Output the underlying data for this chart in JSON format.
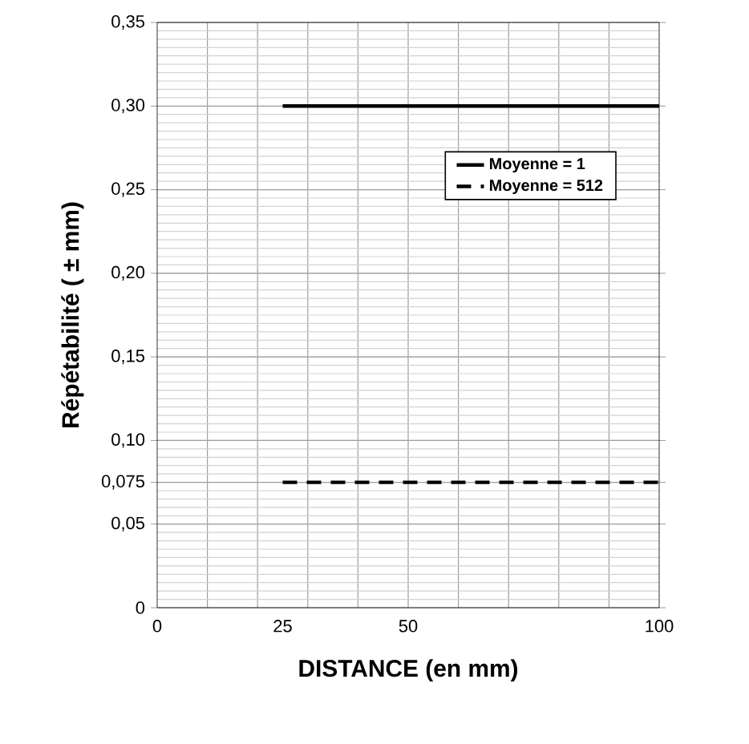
{
  "chart_data": {
    "type": "line",
    "xlabel": "DISTANCE (en mm)",
    "ylabel": "Répétabilité ( ± mm)",
    "xlim": [
      0,
      100
    ],
    "ylim": [
      0,
      0.35
    ],
    "xticks": [
      0,
      25,
      50,
      100
    ],
    "yticks": [
      0,
      {
        "value": 0.05,
        "label": "0,05"
      },
      {
        "value": 0.075,
        "label": "0,075"
      },
      {
        "value": 0.1,
        "label": "0,10"
      },
      {
        "value": 0.15,
        "label": "0,15"
      },
      {
        "value": 0.2,
        "label": "0,20"
      },
      {
        "value": 0.25,
        "label": "0,25"
      },
      {
        "value": 0.3,
        "label": "0,30"
      },
      {
        "value": 0.35,
        "label": "0,35"
      }
    ],
    "x": [
      25,
      100
    ],
    "grid": true,
    "legend": "top right",
    "marker": "none",
    "series": [
      {
        "name": "Moyenne = 1",
        "color": "#000000",
        "line_style": "solid",
        "values": [
          0.3,
          0.3
        ]
      },
      {
        "name": "Moyenne = 512",
        "color": "#000000",
        "line_style": "dashed",
        "values": [
          0.075,
          0.075
        ]
      }
    ]
  }
}
